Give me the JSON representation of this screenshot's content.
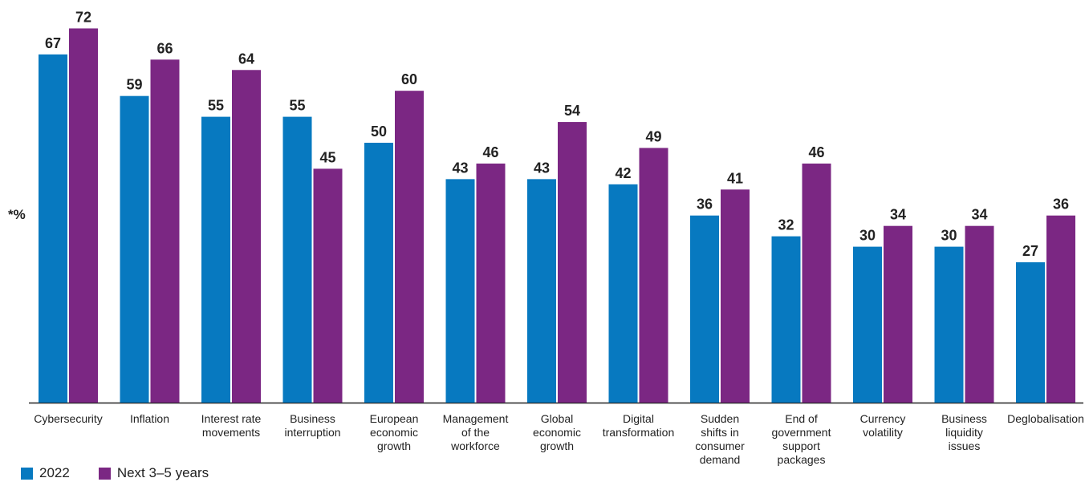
{
  "chart_data": {
    "type": "bar",
    "ylabel": "*%",
    "ylim": [
      0,
      77
    ],
    "grid": false,
    "legend_position": "bottom-left",
    "categories": [
      "Cybersecurity",
      "Inflation",
      "Interest rate movements",
      "Business interruption",
      "European economic growth",
      "Management of the workforce",
      "Global economic growth",
      "Digital transformation",
      "Sudden shifts in consumer demand",
      "End of government support packages",
      "Currency volatility",
      "Business liquidity issues",
      "Deglobalisation"
    ],
    "category_lines": [
      [
        "Cybersecurity"
      ],
      [
        "Inflation"
      ],
      [
        "Interest rate",
        "movements"
      ],
      [
        "Business",
        "interruption"
      ],
      [
        "European",
        "economic",
        "growth"
      ],
      [
        "Management",
        "of the",
        "workforce"
      ],
      [
        "Global",
        "economic",
        "growth"
      ],
      [
        "Digital",
        "transformation"
      ],
      [
        "Sudden",
        "shifts in",
        "consumer",
        "demand"
      ],
      [
        "End of",
        "government",
        "support",
        "packages"
      ],
      [
        "Currency",
        "volatility"
      ],
      [
        "Business",
        "liquidity",
        "issues"
      ],
      [
        "Deglobalisation"
      ]
    ],
    "series": [
      {
        "name": "2022",
        "color": "#0779c0",
        "values": [
          67,
          59,
          55,
          55,
          50,
          43,
          43,
          42,
          36,
          32,
          30,
          30,
          27
        ]
      },
      {
        "name": "Next 3–5 years",
        "color": "#7b2783",
        "values": [
          72,
          66,
          64,
          45,
          60,
          46,
          54,
          49,
          41,
          46,
          34,
          34,
          36
        ]
      }
    ]
  }
}
